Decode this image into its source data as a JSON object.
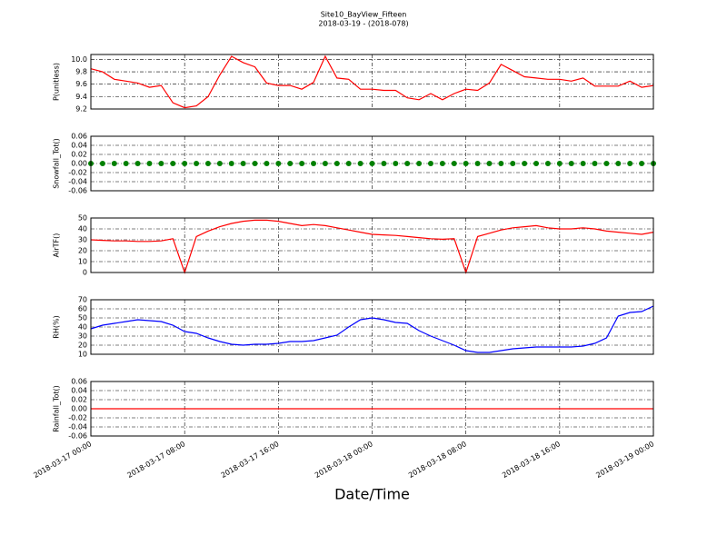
{
  "title": "Site10_BayView_Fifteen",
  "subtitle": "2018-03-19 - (2018-078)",
  "chart_data": [
    {
      "type": "line",
      "ylabel": "P(unitless)",
      "color": "#ff0000",
      "grid": true,
      "xlim": [
        "2018-03-17 00:00",
        "2018-03-19 00:00"
      ],
      "xticks": [
        "2018-03-17 00:00",
        "2018-03-17 08:00",
        "2018-03-17 16:00",
        "2018-03-18 00:00",
        "2018-03-18 08:00",
        "2018-03-18 16:00",
        "2018-03-19 00:00"
      ],
      "ylim": [
        9.2,
        10.08
      ],
      "yticks": [
        9.2,
        9.4,
        9.6,
        9.8,
        {
          "value": 10,
          "label": "10.0"
        }
      ],
      "x": [
        "2018-03-17 00:00",
        "2018-03-17 01:00",
        "2018-03-17 02:00",
        "2018-03-17 03:00",
        "2018-03-17 04:00",
        "2018-03-17 05:00",
        "2018-03-17 06:00",
        "2018-03-17 07:00",
        "2018-03-17 08:00",
        "2018-03-17 09:00",
        "2018-03-17 10:00",
        "2018-03-17 11:00",
        "2018-03-17 12:00",
        "2018-03-17 13:00",
        "2018-03-17 14:00",
        "2018-03-17 15:00",
        "2018-03-17 16:00",
        "2018-03-17 17:00",
        "2018-03-17 18:00",
        "2018-03-17 19:00",
        "2018-03-17 20:00",
        "2018-03-17 21:00",
        "2018-03-17 22:00",
        "2018-03-17 23:00",
        "2018-03-18 00:00",
        "2018-03-18 01:00",
        "2018-03-18 02:00",
        "2018-03-18 03:00",
        "2018-03-18 04:00",
        "2018-03-18 05:00",
        "2018-03-18 06:00",
        "2018-03-18 07:00",
        "2018-03-18 08:00",
        "2018-03-18 09:00",
        "2018-03-18 10:00",
        "2018-03-18 11:00",
        "2018-03-18 12:00",
        "2018-03-18 13:00",
        "2018-03-18 14:00",
        "2018-03-18 15:00",
        "2018-03-18 16:00",
        "2018-03-18 17:00",
        "2018-03-18 18:00",
        "2018-03-18 19:00",
        "2018-03-18 20:00",
        "2018-03-18 21:00",
        "2018-03-18 22:00",
        "2018-03-18 23:00",
        "2018-03-19 00:00"
      ],
      "values": [
        9.85,
        9.8,
        9.68,
        9.65,
        9.62,
        9.55,
        9.58,
        9.3,
        9.22,
        9.25,
        9.4,
        9.75,
        10.05,
        9.95,
        9.88,
        9.62,
        9.58,
        9.58,
        9.52,
        9.63,
        10.05,
        9.7,
        9.68,
        9.52,
        9.52,
        9.5,
        9.5,
        9.38,
        9.35,
        9.45,
        9.35,
        9.45,
        9.52,
        9.5,
        9.62,
        9.92,
        9.82,
        9.72,
        9.7,
        9.68,
        9.68,
        9.65,
        9.7,
        9.57,
        9.57,
        9.57,
        9.65,
        9.55,
        9.58
      ]
    },
    {
      "type": "scatter",
      "ylabel": "Snowfall_Tot()",
      "color": "#008000",
      "grid": true,
      "xlim": [
        "2018-03-17 00:00",
        "2018-03-19 00:00"
      ],
      "xticks": [
        "2018-03-17 00:00",
        "2018-03-17 08:00",
        "2018-03-17 16:00",
        "2018-03-18 00:00",
        "2018-03-18 08:00",
        "2018-03-18 16:00",
        "2018-03-19 00:00"
      ],
      "ylim": [
        -0.06,
        0.06
      ],
      "yticks": [
        -0.06,
        -0.04,
        -0.02,
        {
          "value": 0,
          "label": "0.00"
        },
        0.02,
        0.04,
        0.06
      ],
      "x": [
        "2018-03-17 00:00",
        "2018-03-17 01:00",
        "2018-03-17 02:00",
        "2018-03-17 03:00",
        "2018-03-17 04:00",
        "2018-03-17 05:00",
        "2018-03-17 06:00",
        "2018-03-17 07:00",
        "2018-03-17 08:00",
        "2018-03-17 09:00",
        "2018-03-17 10:00",
        "2018-03-17 11:00",
        "2018-03-17 12:00",
        "2018-03-17 13:00",
        "2018-03-17 14:00",
        "2018-03-17 15:00",
        "2018-03-17 16:00",
        "2018-03-17 17:00",
        "2018-03-17 18:00",
        "2018-03-17 19:00",
        "2018-03-17 20:00",
        "2018-03-17 21:00",
        "2018-03-17 22:00",
        "2018-03-17 23:00",
        "2018-03-18 00:00",
        "2018-03-18 01:00",
        "2018-03-18 02:00",
        "2018-03-18 03:00",
        "2018-03-18 04:00",
        "2018-03-18 05:00",
        "2018-03-18 06:00",
        "2018-03-18 07:00",
        "2018-03-18 08:00",
        "2018-03-18 09:00",
        "2018-03-18 10:00",
        "2018-03-18 11:00",
        "2018-03-18 12:00",
        "2018-03-18 13:00",
        "2018-03-18 14:00",
        "2018-03-18 15:00",
        "2018-03-18 16:00",
        "2018-03-18 17:00",
        "2018-03-18 18:00",
        "2018-03-18 19:00",
        "2018-03-18 20:00",
        "2018-03-18 21:00",
        "2018-03-18 22:00",
        "2018-03-18 23:00",
        "2018-03-19 00:00"
      ],
      "values": [
        0,
        0,
        0,
        0,
        0,
        0,
        0,
        0,
        0,
        0,
        0,
        0,
        0,
        0,
        0,
        0,
        0,
        0,
        0,
        0,
        0,
        0,
        0,
        0,
        0,
        0,
        0,
        0,
        0,
        0,
        0,
        0,
        0,
        0,
        0,
        0,
        0,
        0,
        0,
        0,
        0,
        0,
        0,
        0,
        0,
        0,
        0,
        0,
        0
      ]
    },
    {
      "type": "line",
      "ylabel": "AirTF()",
      "color": "#ff0000",
      "grid": true,
      "xlim": [
        "2018-03-17 00:00",
        "2018-03-19 00:00"
      ],
      "xticks": [
        "2018-03-17 00:00",
        "2018-03-17 08:00",
        "2018-03-17 16:00",
        "2018-03-18 00:00",
        "2018-03-18 08:00",
        "2018-03-18 16:00",
        "2018-03-19 00:00"
      ],
      "ylim": [
        0,
        50
      ],
      "yticks": [
        0,
        10,
        20,
        30,
        40,
        50
      ],
      "x": [
        "2018-03-17 00:00",
        "2018-03-17 01:00",
        "2018-03-17 02:00",
        "2018-03-17 03:00",
        "2018-03-17 04:00",
        "2018-03-17 05:00",
        "2018-03-17 06:00",
        "2018-03-17 07:00",
        "2018-03-17 08:00",
        "2018-03-17 09:00",
        "2018-03-17 10:00",
        "2018-03-17 11:00",
        "2018-03-17 12:00",
        "2018-03-17 13:00",
        "2018-03-17 14:00",
        "2018-03-17 15:00",
        "2018-03-17 16:00",
        "2018-03-17 17:00",
        "2018-03-17 18:00",
        "2018-03-17 19:00",
        "2018-03-17 20:00",
        "2018-03-17 21:00",
        "2018-03-17 22:00",
        "2018-03-17 23:00",
        "2018-03-18 00:00",
        "2018-03-18 01:00",
        "2018-03-18 02:00",
        "2018-03-18 03:00",
        "2018-03-18 04:00",
        "2018-03-18 05:00",
        "2018-03-18 06:00",
        "2018-03-18 07:00",
        "2018-03-18 08:00",
        "2018-03-18 09:00",
        "2018-03-18 10:00",
        "2018-03-18 11:00",
        "2018-03-18 12:00",
        "2018-03-18 13:00",
        "2018-03-18 14:00",
        "2018-03-18 15:00",
        "2018-03-18 16:00",
        "2018-03-18 17:00",
        "2018-03-18 18:00",
        "2018-03-18 19:00",
        "2018-03-18 20:00",
        "2018-03-18 21:00",
        "2018-03-18 22:00",
        "2018-03-18 23:00",
        "2018-03-19 00:00"
      ],
      "values": [
        30,
        29.5,
        29,
        29,
        28.5,
        28.5,
        29,
        31,
        0,
        33,
        38,
        42,
        45,
        47,
        48,
        48,
        47,
        45,
        43,
        44,
        43,
        41,
        39,
        37,
        35,
        34.5,
        34,
        33,
        32,
        31,
        30.5,
        31,
        0,
        33,
        36,
        39,
        41,
        42,
        43,
        41,
        40,
        40,
        41,
        40,
        38,
        37,
        36,
        35,
        37
      ]
    },
    {
      "type": "line",
      "ylabel": "RH(%)",
      "color": "#0000ff",
      "grid": true,
      "xlim": [
        "2018-03-17 00:00",
        "2018-03-19 00:00"
      ],
      "xticks": [
        "2018-03-17 00:00",
        "2018-03-17 08:00",
        "2018-03-17 16:00",
        "2018-03-18 00:00",
        "2018-03-18 08:00",
        "2018-03-18 16:00",
        "2018-03-19 00:00"
      ],
      "ylim": [
        10,
        70
      ],
      "yticks": [
        10,
        20,
        30,
        40,
        50,
        60,
        70
      ],
      "x": [
        "2018-03-17 00:00",
        "2018-03-17 01:00",
        "2018-03-17 02:00",
        "2018-03-17 03:00",
        "2018-03-17 04:00",
        "2018-03-17 05:00",
        "2018-03-17 06:00",
        "2018-03-17 07:00",
        "2018-03-17 08:00",
        "2018-03-17 09:00",
        "2018-03-17 10:00",
        "2018-03-17 11:00",
        "2018-03-17 12:00",
        "2018-03-17 13:00",
        "2018-03-17 14:00",
        "2018-03-17 15:00",
        "2018-03-17 16:00",
        "2018-03-17 17:00",
        "2018-03-17 18:00",
        "2018-03-17 19:00",
        "2018-03-17 20:00",
        "2018-03-17 21:00",
        "2018-03-17 22:00",
        "2018-03-17 23:00",
        "2018-03-18 00:00",
        "2018-03-18 01:00",
        "2018-03-18 02:00",
        "2018-03-18 03:00",
        "2018-03-18 04:00",
        "2018-03-18 05:00",
        "2018-03-18 06:00",
        "2018-03-18 07:00",
        "2018-03-18 08:00",
        "2018-03-18 09:00",
        "2018-03-18 10:00",
        "2018-03-18 11:00",
        "2018-03-18 12:00",
        "2018-03-18 13:00",
        "2018-03-18 14:00",
        "2018-03-18 15:00",
        "2018-03-18 16:00",
        "2018-03-18 17:00",
        "2018-03-18 18:00",
        "2018-03-18 19:00",
        "2018-03-18 20:00",
        "2018-03-18 21:00",
        "2018-03-18 22:00",
        "2018-03-18 23:00",
        "2018-03-19 00:00"
      ],
      "values": [
        38,
        42,
        44,
        46,
        48,
        47,
        46,
        42,
        35,
        33,
        28,
        24,
        21,
        20,
        21,
        21,
        22,
        24,
        24,
        25,
        28,
        31,
        40,
        48,
        50,
        48,
        45,
        44,
        36,
        30,
        25,
        20,
        14,
        12,
        12,
        14,
        16,
        17,
        18,
        18,
        18,
        18,
        19,
        22,
        28,
        52,
        56,
        57,
        63
      ]
    },
    {
      "type": "line",
      "ylabel": "Rainfall_Tot()",
      "xlabel": "Date/Time",
      "color": "#ff0000",
      "grid": true,
      "xlim": [
        "2018-03-17 00:00",
        "2018-03-19 00:00"
      ],
      "xticks": [
        "2018-03-17 00:00",
        "2018-03-17 08:00",
        "2018-03-17 16:00",
        "2018-03-18 00:00",
        "2018-03-18 08:00",
        "2018-03-18 16:00",
        "2018-03-19 00:00"
      ],
      "ylim": [
        -0.06,
        0.06
      ],
      "yticks": [
        -0.06,
        -0.04,
        -0.02,
        {
          "value": 0,
          "label": "0.00"
        },
        0.02,
        0.04,
        0.06
      ],
      "x": [
        "2018-03-17 00:00",
        "2018-03-17 01:00",
        "2018-03-17 02:00",
        "2018-03-17 03:00",
        "2018-03-17 04:00",
        "2018-03-17 05:00",
        "2018-03-17 06:00",
        "2018-03-17 07:00",
        "2018-03-17 08:00",
        "2018-03-17 09:00",
        "2018-03-17 10:00",
        "2018-03-17 11:00",
        "2018-03-17 12:00",
        "2018-03-17 13:00",
        "2018-03-17 14:00",
        "2018-03-17 15:00",
        "2018-03-17 16:00",
        "2018-03-17 17:00",
        "2018-03-17 18:00",
        "2018-03-17 19:00",
        "2018-03-17 20:00",
        "2018-03-17 21:00",
        "2018-03-17 22:00",
        "2018-03-17 23:00",
        "2018-03-18 00:00",
        "2018-03-18 01:00",
        "2018-03-18 02:00",
        "2018-03-18 03:00",
        "2018-03-18 04:00",
        "2018-03-18 05:00",
        "2018-03-18 06:00",
        "2018-03-18 07:00",
        "2018-03-18 08:00",
        "2018-03-18 09:00",
        "2018-03-18 10:00",
        "2018-03-18 11:00",
        "2018-03-18 12:00",
        "2018-03-18 13:00",
        "2018-03-18 14:00",
        "2018-03-18 15:00",
        "2018-03-18 16:00",
        "2018-03-18 17:00",
        "2018-03-18 18:00",
        "2018-03-18 19:00",
        "2018-03-18 20:00",
        "2018-03-18 21:00",
        "2018-03-18 22:00",
        "2018-03-18 23:00",
        "2018-03-19 00:00"
      ],
      "values": [
        0,
        0,
        0,
        0,
        0,
        0,
        0,
        0,
        0,
        0,
        0,
        0,
        0,
        0,
        0,
        0,
        0,
        0,
        0,
        0,
        0,
        0,
        0,
        0,
        0,
        0,
        0,
        0,
        0,
        0,
        0,
        0,
        0,
        0,
        0,
        0,
        0,
        0,
        0,
        0,
        0,
        0,
        0,
        0,
        0,
        0,
        0,
        0,
        0
      ]
    }
  ]
}
